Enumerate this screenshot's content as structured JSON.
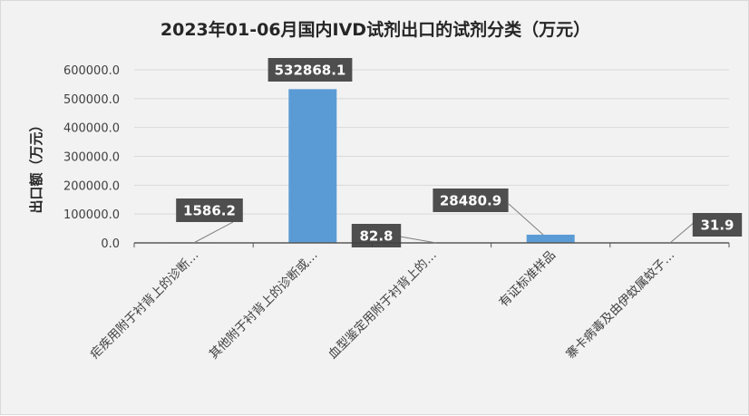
{
  "chart_data": {
    "type": "bar",
    "title": "2023年01-06月国内IVD试剂出口的试剂分类（万元）",
    "ylabel": "出口额（万元）",
    "xlabel": "",
    "categories": [
      "疟疾用附于衬背上的诊断…",
      "其他附于衬背上的诊断或…",
      "血型鉴定用附于衬背上的…",
      "有证标准样品",
      "寨卡病毒及由伊蚊属蚊子…"
    ],
    "values": [
      1586.2,
      532868.1,
      82.8,
      28480.9,
      31.9
    ],
    "data_labels": [
      "1586.2",
      "532868.1",
      "82.8",
      "28480.9",
      "31.9"
    ],
    "ylim": [
      0,
      600000
    ],
    "yticks": [
      0,
      100000,
      200000,
      300000,
      400000,
      500000,
      600000
    ],
    "ytick_labels": [
      "0.0",
      "100000.0",
      "200000.0",
      "300000.0",
      "400000.0",
      "500000.0",
      "600000.0"
    ],
    "grid": true,
    "colors": {
      "bar": "#5b9bd5",
      "label_box": "#404040",
      "gridline": "#d9d9d9",
      "background": "#f2f2f2"
    }
  }
}
